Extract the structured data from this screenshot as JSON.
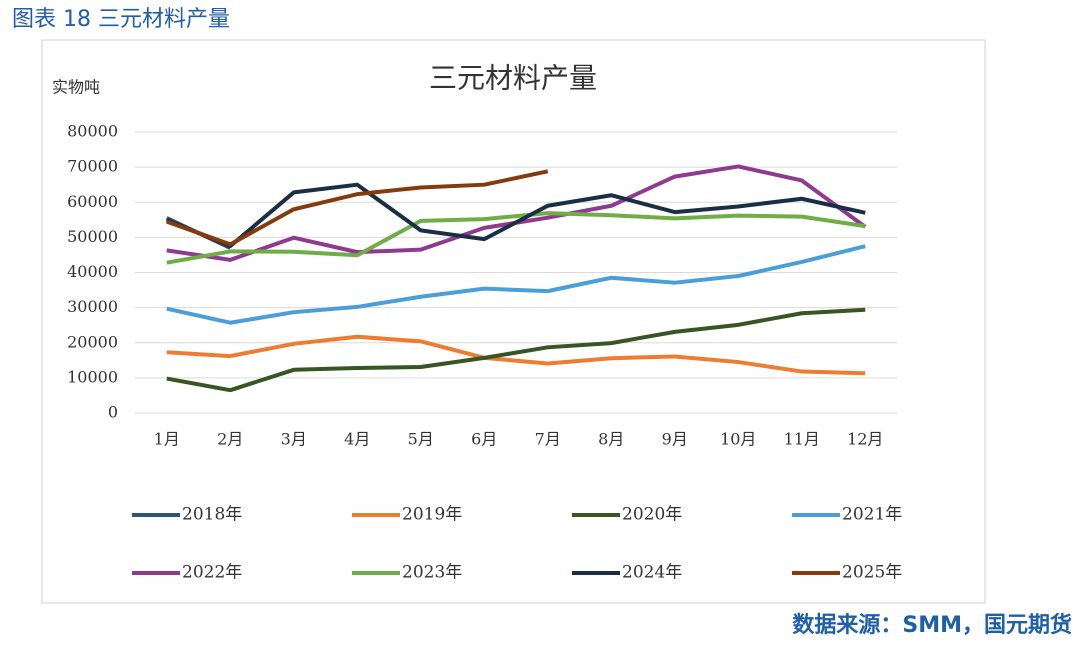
{
  "header": "图表 18 三元材料产量",
  "source": "数据来源：SMM，国元期货",
  "chart_data": {
    "type": "line",
    "title": "三元材料产量",
    "y_label": "实物吨",
    "categories": [
      "1月",
      "2月",
      "3月",
      "4月",
      "5月",
      "6月",
      "7月",
      "8月",
      "9月",
      "10月",
      "11月",
      "12月"
    ],
    "ylim": [
      0,
      80000
    ],
    "yticks": [
      0,
      10000,
      20000,
      30000,
      40000,
      50000,
      60000,
      70000,
      80000
    ],
    "grid": true,
    "series": [
      {
        "name": "2018年",
        "color": "#2f5373",
        "values": [
          55500,
          47000,
          null,
          null,
          null,
          null,
          null,
          null,
          null,
          null,
          null,
          null
        ]
      },
      {
        "name": "2019年",
        "color": "#ed7d31",
        "values": [
          17300,
          16200,
          19700,
          21700,
          20400,
          15700,
          14100,
          15600,
          16100,
          14500,
          11800,
          11300
        ]
      },
      {
        "name": "2020年",
        "color": "#375623",
        "values": [
          9800,
          6500,
          12300,
          12800,
          13100,
          15700,
          18700,
          19900,
          23100,
          25100,
          28400,
          29400
        ]
      },
      {
        "name": "2021年",
        "color": "#4a9fd8",
        "values": [
          29700,
          25700,
          28700,
          30200,
          33100,
          35400,
          34700,
          38500,
          37100,
          39000,
          43000,
          47500
        ]
      },
      {
        "name": "2022年",
        "color": "#8e3a8e",
        "values": [
          46300,
          43600,
          49900,
          45800,
          46500,
          52700,
          55600,
          59000,
          67300,
          70200,
          66200,
          53000
        ]
      },
      {
        "name": "2023年",
        "color": "#70ad47",
        "values": [
          42800,
          46000,
          45900,
          44900,
          54700,
          55200,
          56900,
          56300,
          55400,
          56200,
          55900,
          53200
        ]
      },
      {
        "name": "2024年",
        "color": "#1a2f45",
        "values": [
          55000,
          47500,
          62800,
          65000,
          52000,
          49500,
          59000,
          62000,
          57200,
          58800,
          61000,
          57000
        ]
      },
      {
        "name": "2025年",
        "color": "#843c0c",
        "values": [
          54500,
          48000,
          58000,
          62300,
          64200,
          65000,
          68800,
          null,
          null,
          null,
          null,
          null
        ]
      }
    ]
  }
}
